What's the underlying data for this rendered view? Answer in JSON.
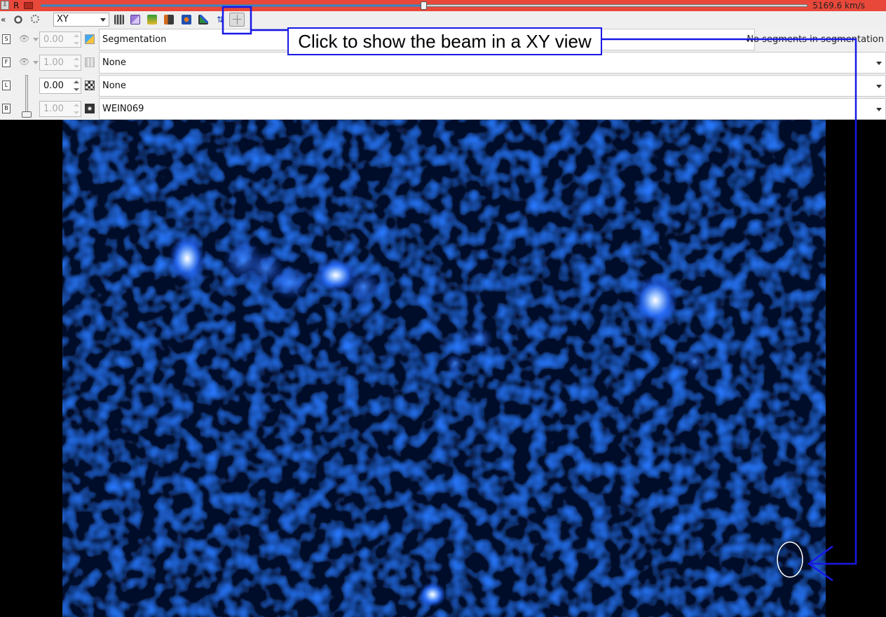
{
  "slice_bar": {
    "pin_glyph": "⇩",
    "axis_label": "R",
    "velocity": "5169.6 km/s",
    "position_fraction": 0.5
  },
  "toolbar": {
    "collapse_glyph": "«",
    "view_combo": "XY",
    "icons": [
      "visibility-icon",
      "sun-icon",
      "grid-icon",
      "contour-icon",
      "layer-stack-icon",
      "pen-icon",
      "mask-icon",
      "graph-icon",
      "arrows-icon",
      "beam-crosshair-icon"
    ]
  },
  "layers": [
    {
      "spin": "0.00",
      "spin_enabled": false,
      "select": "Segmentation",
      "status": "No segments in segmentation"
    },
    {
      "spin": "1.00",
      "spin_enabled": false,
      "select": "None"
    },
    {
      "spin": "0.00",
      "spin_enabled": true,
      "select": "None"
    },
    {
      "spin": "1.00",
      "spin_enabled": false,
      "select": "WEIN069"
    }
  ],
  "annotation": {
    "text": "Click to show the beam in a XY view",
    "color": "#1818e8"
  },
  "colors": {
    "slider_bar": "#e8483a",
    "image_base": "#0a2a8a",
    "image_bright": "#3c8cff"
  }
}
